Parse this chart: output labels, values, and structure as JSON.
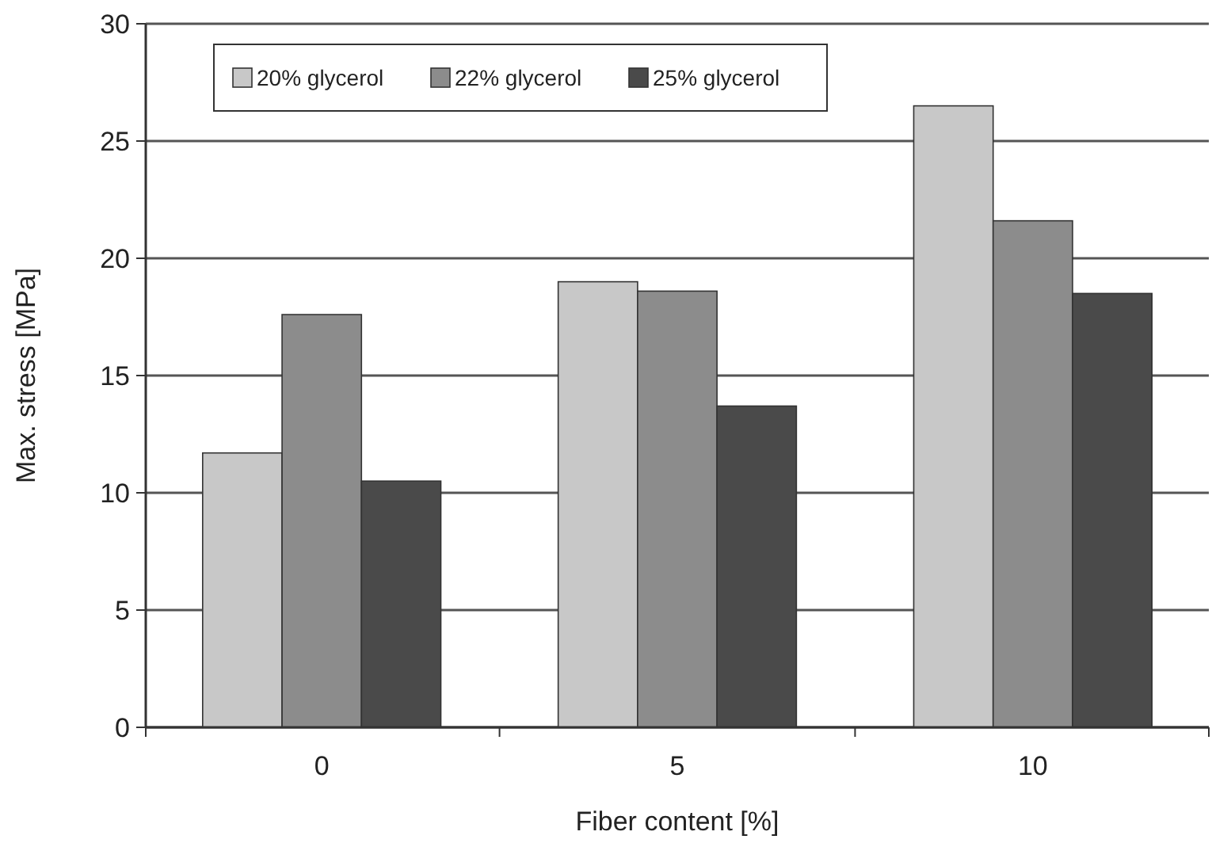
{
  "chart_data": {
    "type": "bar",
    "xlabel": "Fiber content [%]",
    "ylabel": "Max. stress [MPa]",
    "categories": [
      "0",
      "5",
      "10"
    ],
    "series": [
      {
        "name": "20% glycerol",
        "color": "#c8c8c8",
        "values": [
          11.7,
          19.0,
          26.5
        ]
      },
      {
        "name": "22% glycerol",
        "color": "#8c8c8c",
        "values": [
          17.6,
          18.6,
          21.6
        ]
      },
      {
        "name": "25% glycerol",
        "color": "#4a4a4a",
        "values": [
          10.5,
          13.7,
          18.5
        ]
      }
    ],
    "ylim": [
      0,
      30
    ],
    "yticks": [
      0,
      5,
      10,
      15,
      20,
      25,
      30
    ],
    "grid": "y",
    "legend": "top left"
  }
}
